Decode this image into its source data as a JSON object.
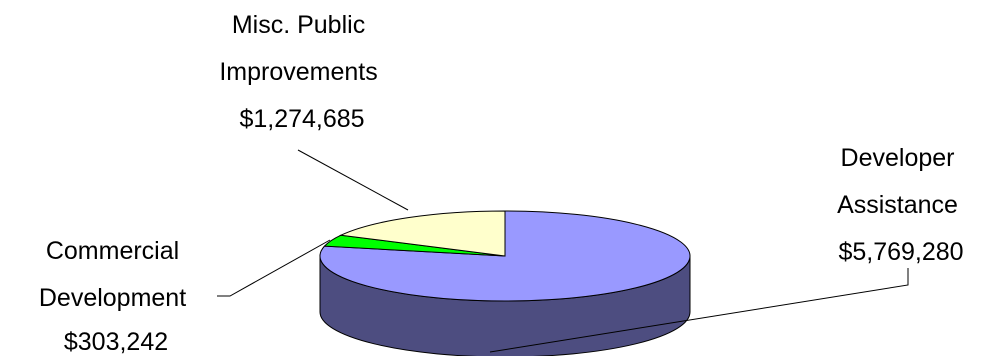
{
  "chart_data": {
    "type": "pie",
    "style": "3d",
    "title": "",
    "slices": [
      {
        "label_lines": [
          "Developer",
          "Assistance",
          "$5,769,280"
        ],
        "value": 5769280,
        "color": "#9999ff",
        "side_color": "#4d4d80"
      },
      {
        "label_lines": [
          "Commercial",
          "Development",
          "$303,242"
        ],
        "value": 303242,
        "color": "#00ff00",
        "side_color": "#008000"
      },
      {
        "label_lines": [
          "Misc. Public",
          "Improvements",
          "$1,274,685"
        ],
        "value": 1274685,
        "color": "#ffffcc",
        "side_color": "#80806b"
      }
    ]
  }
}
